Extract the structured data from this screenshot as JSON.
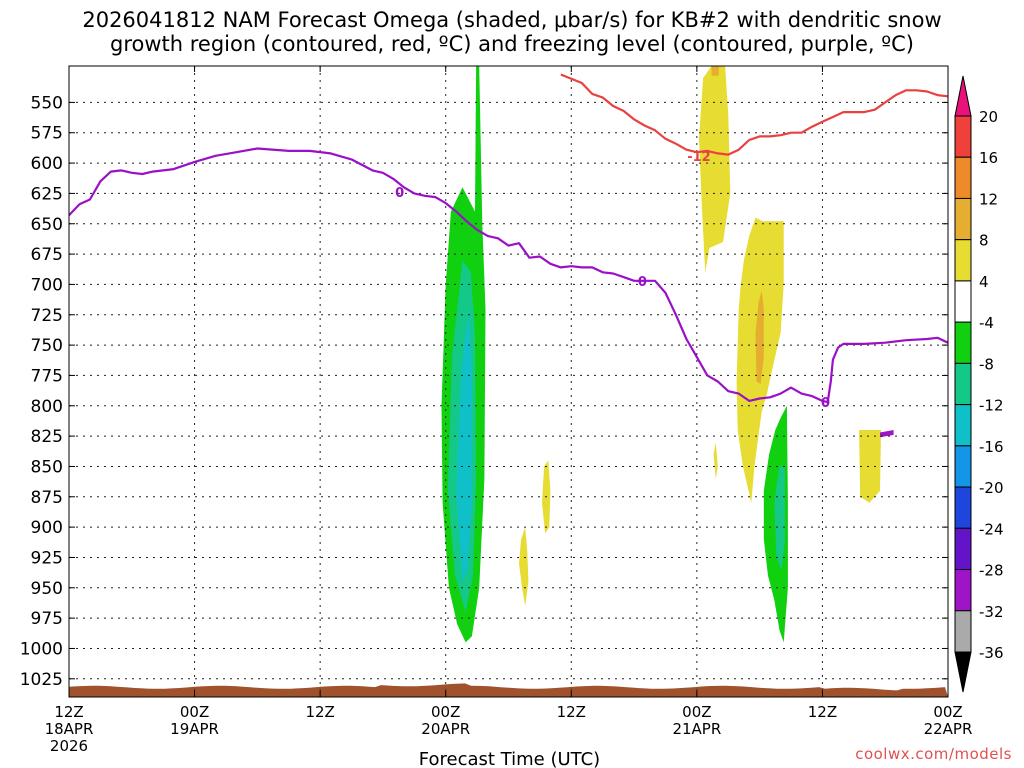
{
  "title_line1": "2026041812 NAM Forecast Omega (shaded, μbar/s) for KB#2 with dendritic snow",
  "title_line2": "growth region (contoured, red, ºC) and freezing level (contoured, purple, ºC)",
  "watermark": "coolwx.com/models",
  "chart_data": {
    "type": "heatmap",
    "title": "2026041812 NAM Forecast Omega (shaded, μbar/s) for KB#2 with dendritic snow growth region (contoured, red, ºC) and freezing level (contoured, purple, ºC)",
    "xlabel": "Forecast Time (UTC)",
    "ylabel": "",
    "x_range_hours": [
      0,
      84
    ],
    "y_range_hpa": [
      1040,
      520
    ],
    "y_ticks": [
      "550",
      "575",
      "600",
      "625",
      "650",
      "675",
      "700",
      "725",
      "750",
      "775",
      "800",
      "825",
      "850",
      "875",
      "900",
      "925",
      "950",
      "975",
      "1000",
      "1025"
    ],
    "x_ticks": [
      {
        "hour": 0,
        "line1": "12Z",
        "line2": "18APR",
        "line3": "2026"
      },
      {
        "hour": 12,
        "line1": "00Z",
        "line2": "19APR",
        "line3": ""
      },
      {
        "hour": 24,
        "line1": "12Z",
        "line2": "",
        "line3": ""
      },
      {
        "hour": 36,
        "line1": "00Z",
        "line2": "20APR",
        "line3": ""
      },
      {
        "hour": 48,
        "line1": "12Z",
        "line2": "",
        "line3": ""
      },
      {
        "hour": 60,
        "line1": "00Z",
        "line2": "21APR",
        "line3": ""
      },
      {
        "hour": 72,
        "line1": "12Z",
        "line2": "",
        "line3": ""
      },
      {
        "hour": 84,
        "line1": "00Z",
        "line2": "22APR",
        "line3": ""
      }
    ],
    "colorbar": {
      "labels": [
        "20",
        "16",
        "12",
        "8",
        "4",
        "-4",
        "-8",
        "-12",
        "-16",
        "-20",
        "-24",
        "-28",
        "-32",
        "-36"
      ],
      "bins": [
        {
          "lo": 20,
          "hi": 24,
          "color": "#e8127a"
        },
        {
          "lo": 16,
          "hi": 20,
          "color": "#f0403c"
        },
        {
          "lo": 12,
          "hi": 16,
          "color": "#ee8a28"
        },
        {
          "lo": 8,
          "hi": 12,
          "color": "#e6ae30"
        },
        {
          "lo": 4,
          "hi": 8,
          "color": "#e6dc32"
        },
        {
          "lo": -4,
          "hi": 4,
          "color": "#ffffff"
        },
        {
          "lo": -8,
          "hi": -4,
          "color": "#10d010"
        },
        {
          "lo": -12,
          "hi": -8,
          "color": "#14c888"
        },
        {
          "lo": -16,
          "hi": -12,
          "color": "#10c0c8"
        },
        {
          "lo": -20,
          "hi": -16,
          "color": "#1496e8"
        },
        {
          "lo": -24,
          "hi": -20,
          "color": "#1e46dc"
        },
        {
          "lo": -28,
          "hi": -24,
          "color": "#6414c8"
        },
        {
          "lo": -32,
          "hi": -28,
          "color": "#a014c8"
        },
        {
          "lo": -36,
          "hi": -32,
          "color": "#aaaaaa"
        },
        {
          "lo": -40,
          "hi": -36,
          "color": "#000000"
        }
      ]
    },
    "freezing_level_0C": {
      "label": "0",
      "color": "#9a10c8",
      "points": [
        [
          0,
          643
        ],
        [
          1,
          634
        ],
        [
          2,
          630
        ],
        [
          3,
          615
        ],
        [
          4,
          607
        ],
        [
          5,
          606
        ],
        [
          6,
          608
        ],
        [
          7,
          609
        ],
        [
          8,
          607
        ],
        [
          9,
          606
        ],
        [
          10,
          605
        ],
        [
          12,
          599
        ],
        [
          14,
          594
        ],
        [
          16,
          591
        ],
        [
          18,
          588
        ],
        [
          21,
          590
        ],
        [
          23,
          590
        ],
        [
          25,
          592
        ],
        [
          27,
          597
        ],
        [
          29,
          606
        ],
        [
          30,
          608
        ],
        [
          31,
          613
        ],
        [
          32,
          620
        ],
        [
          33,
          625
        ],
        [
          34,
          627
        ],
        [
          35,
          628
        ],
        [
          36,
          633
        ],
        [
          37,
          640
        ],
        [
          38,
          648
        ],
        [
          39,
          655
        ],
        [
          40,
          660
        ],
        [
          41,
          662
        ],
        [
          42,
          668
        ],
        [
          43,
          666
        ],
        [
          44,
          678
        ],
        [
          45,
          677
        ],
        [
          46,
          683
        ],
        [
          47,
          686
        ],
        [
          48,
          685
        ],
        [
          49,
          686
        ],
        [
          50,
          686
        ],
        [
          51,
          690
        ],
        [
          52,
          691
        ],
        [
          53,
          694
        ],
        [
          54,
          697
        ],
        [
          56,
          697
        ],
        [
          57,
          707
        ],
        [
          58,
          725
        ],
        [
          59,
          745
        ],
        [
          60,
          760
        ],
        [
          61,
          775
        ],
        [
          62,
          780
        ],
        [
          63,
          788
        ],
        [
          64,
          790
        ],
        [
          65,
          796
        ],
        [
          66,
          794
        ],
        [
          67,
          793
        ],
        [
          68,
          790
        ],
        [
          69,
          785
        ],
        [
          70,
          790
        ],
        [
          71,
          792
        ],
        [
          72,
          796
        ],
        [
          72.5,
          797
        ],
        [
          72.8,
          780
        ],
        [
          73,
          762
        ],
        [
          73.5,
          752
        ],
        [
          74,
          749
        ],
        [
          76,
          749
        ],
        [
          78,
          748
        ],
        [
          80,
          746
        ],
        [
          82,
          745
        ],
        [
          83,
          744
        ],
        [
          84,
          748
        ]
      ]
    },
    "dendritic_minus12C": {
      "label": "-12",
      "color": "#ea4040",
      "points": [
        [
          47,
          527
        ],
        [
          49,
          534
        ],
        [
          50,
          543
        ],
        [
          51,
          546
        ],
        [
          52,
          553
        ],
        [
          53,
          557
        ],
        [
          54,
          564
        ],
        [
          55,
          569
        ],
        [
          56,
          573
        ],
        [
          57,
          580
        ],
        [
          58,
          584
        ],
        [
          59,
          589
        ],
        [
          60,
          591
        ],
        [
          61,
          590
        ],
        [
          62,
          592
        ],
        [
          63,
          593
        ],
        [
          64,
          589
        ],
        [
          65,
          581
        ],
        [
          66,
          578
        ],
        [
          67,
          578
        ],
        [
          68,
          577
        ],
        [
          69,
          575
        ],
        [
          70,
          575
        ],
        [
          71,
          570
        ],
        [
          72,
          566
        ],
        [
          73,
          562
        ],
        [
          74,
          558
        ],
        [
          75,
          558
        ],
        [
          76,
          558
        ],
        [
          77,
          556
        ],
        [
          78,
          550
        ],
        [
          79,
          544
        ],
        [
          80,
          540
        ],
        [
          81,
          540
        ],
        [
          82,
          541
        ],
        [
          83,
          544
        ],
        [
          84,
          545
        ]
      ]
    },
    "omega_regions": [
      {
        "name": "green band 20APR",
        "value": -6,
        "points": [
          [
            35.7,
            880
          ],
          [
            35.6,
            800
          ],
          [
            36.0,
            700
          ],
          [
            36.5,
            640
          ],
          [
            37.6,
            620
          ],
          [
            38.8,
            640
          ],
          [
            38.9,
            520
          ],
          [
            39.2,
            520
          ],
          [
            39.5,
            650
          ],
          [
            39.8,
            720
          ],
          [
            39.7,
            860
          ],
          [
            39.2,
            950
          ],
          [
            38.5,
            990
          ],
          [
            37.9,
            995
          ],
          [
            37.1,
            980
          ],
          [
            36.3,
            950
          ]
        ]
      },
      {
        "name": "teal band 20APR",
        "value": -10,
        "points": [
          [
            36.2,
            870
          ],
          [
            36.6,
            760
          ],
          [
            37.6,
            680
          ],
          [
            38.4,
            690
          ],
          [
            38.8,
            740
          ],
          [
            38.9,
            860
          ],
          [
            38.6,
            940
          ],
          [
            37.9,
            970
          ],
          [
            36.9,
            940
          ]
        ]
      },
      {
        "name": "cyan band 20APR",
        "value": -14,
        "points": [
          [
            37.0,
            870
          ],
          [
            37.5,
            770
          ],
          [
            38.2,
            720
          ],
          [
            38.5,
            770
          ],
          [
            38.5,
            880
          ],
          [
            38.1,
            935
          ],
          [
            37.6,
            945
          ]
        ]
      },
      {
        "name": "green band 21APR",
        "value": -6,
        "points": [
          [
            66.4,
            870
          ],
          [
            66.9,
            840
          ],
          [
            67.5,
            820
          ],
          [
            68.0,
            810
          ],
          [
            68.6,
            800
          ],
          [
            68.7,
            880
          ],
          [
            68.7,
            950
          ],
          [
            68.3,
            995
          ],
          [
            67.9,
            985
          ],
          [
            67.4,
            960
          ],
          [
            66.8,
            940
          ],
          [
            66.4,
            910
          ]
        ]
      },
      {
        "name": "teal band 21APR",
        "value": -10,
        "points": [
          [
            67.4,
            880
          ],
          [
            67.9,
            850
          ],
          [
            68.4,
            850
          ],
          [
            68.4,
            910
          ],
          [
            68.1,
            935
          ],
          [
            67.6,
            925
          ]
        ]
      },
      {
        "name": "yellow upper 21APR",
        "value": 6,
        "points": [
          [
            60.2,
            580
          ],
          [
            60.6,
            530
          ],
          [
            61.4,
            520
          ],
          [
            62.7,
            520
          ],
          [
            63.0,
            560
          ],
          [
            63.2,
            625
          ],
          [
            62.5,
            665
          ],
          [
            61.2,
            670
          ],
          [
            60.8,
            690
          ],
          [
            60.5,
            640
          ]
        ]
      },
      {
        "name": "orange upper 21APR",
        "value": 10,
        "points": [
          [
            61.4,
            515
          ],
          [
            62.1,
            515
          ],
          [
            62.1,
            528
          ],
          [
            61.4,
            528
          ]
        ]
      },
      {
        "name": "yellow middle 21APR",
        "value": 6,
        "points": [
          [
            63.8,
            780
          ],
          [
            64.0,
            720
          ],
          [
            64.2,
            700
          ],
          [
            64.5,
            680
          ],
          [
            65.0,
            660
          ],
          [
            65.6,
            645
          ],
          [
            66.3,
            648
          ],
          [
            68.3,
            648
          ],
          [
            68.3,
            700
          ],
          [
            68.0,
            740
          ],
          [
            67.2,
            770
          ],
          [
            66.7,
            790
          ],
          [
            66.2,
            805
          ],
          [
            65.5,
            850
          ],
          [
            65.2,
            880
          ],
          [
            64.4,
            850
          ],
          [
            63.9,
            820
          ]
        ]
      },
      {
        "name": "orange middle 21APR",
        "value": 10,
        "points": [
          [
            65.6,
            740
          ],
          [
            65.9,
            715
          ],
          [
            66.2,
            705
          ],
          [
            66.4,
            720
          ],
          [
            66.4,
            760
          ],
          [
            66.1,
            782
          ],
          [
            65.7,
            780
          ]
        ]
      },
      {
        "name": "yellow blob A",
        "value": 6,
        "points": [
          [
            43.2,
            910
          ],
          [
            43.6,
            900
          ],
          [
            43.8,
            920
          ],
          [
            43.9,
            945
          ],
          [
            43.6,
            965
          ],
          [
            43.3,
            950
          ],
          [
            43.0,
            930
          ]
        ]
      },
      {
        "name": "yellow blob B",
        "value": 6,
        "points": [
          [
            45.2,
            880
          ],
          [
            45.4,
            850
          ],
          [
            45.8,
            845
          ],
          [
            46.0,
            870
          ],
          [
            45.9,
            900
          ],
          [
            45.5,
            905
          ]
        ]
      },
      {
        "name": "yellow blob C",
        "value": 6,
        "points": [
          [
            61.6,
            840
          ],
          [
            61.8,
            830
          ],
          [
            62.0,
            850
          ],
          [
            61.8,
            860
          ]
        ]
      },
      {
        "name": "yellow blob D",
        "value": 6,
        "points": [
          [
            75.5,
            820
          ],
          [
            77.6,
            820
          ],
          [
            77.5,
            870
          ],
          [
            76.5,
            880
          ],
          [
            75.6,
            875
          ]
        ]
      },
      {
        "name": "purple dash",
        "value": -30,
        "points": [
          [
            77.5,
            822
          ],
          [
            78.8,
            820
          ],
          [
            78.8,
            824
          ],
          [
            77.5,
            826
          ]
        ]
      }
    ],
    "topography_pressure_hpa": 1032
  }
}
